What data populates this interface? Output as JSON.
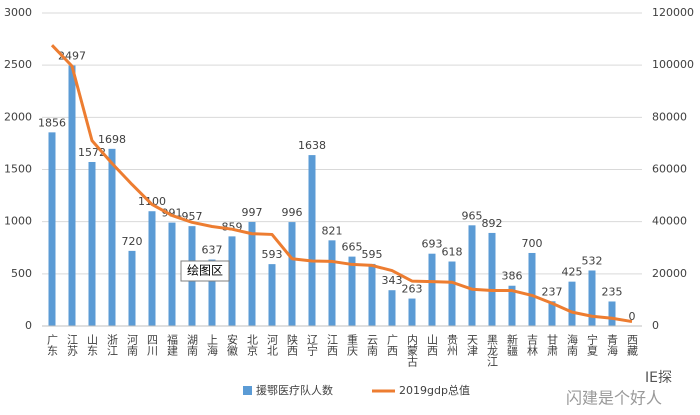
{
  "chart_data": {
    "type": "bar-line",
    "categories": [
      "广东",
      "江苏",
      "山东",
      "浙江",
      "河南",
      "四川",
      "福建",
      "湖南",
      "上海",
      "安徽",
      "北京",
      "河北",
      "陕西",
      "辽宁",
      "江西",
      "重庆",
      "云南",
      "广西",
      "内蒙古",
      "山西",
      "贵州",
      "天津",
      "黑龙江",
      "新疆",
      "吉林",
      "甘肃",
      "海南",
      "宁夏",
      "青海",
      "西藏"
    ],
    "series": [
      {
        "name": "援鄂医疗队人数",
        "color": "#5b9bd5",
        "type": "bar",
        "values": [
          1856,
          2497,
          1572,
          1698,
          720,
          1100,
          991,
          957,
          637,
          859,
          997,
          593,
          996,
          1638,
          821,
          665,
          595,
          343,
          263,
          693,
          618,
          965,
          892,
          386,
          700,
          237,
          425,
          532,
          235,
          0
        ]
      },
      {
        "name": "2019gdp总值",
        "color": "#ed7d31",
        "type": "line",
        "axis": "y2",
        "values": [
          107671,
          99632,
          71067,
          62352,
          54259,
          46616,
          42395,
          39752,
          38155,
          37114,
          35371,
          35104,
          25793,
          24909,
          24758,
          23606,
          23224,
          21237,
          17213,
          17027,
          16769,
          14104,
          13613,
          13597,
          11727,
          8718,
          5309,
          3748,
          2966,
          1698
        ]
      }
    ],
    "ylim": [
      0,
      3000
    ],
    "yticks": [
      0,
      500,
      1000,
      1500,
      2000,
      2500,
      3000
    ],
    "y2lim": [
      0,
      120000
    ],
    "y2ticks": [
      0,
      20000,
      40000,
      60000,
      80000,
      100000,
      120000
    ],
    "data_labels": true,
    "tooltip": "绘图区",
    "watermark": [
      "IE探",
      "闪建是个好人"
    ]
  }
}
